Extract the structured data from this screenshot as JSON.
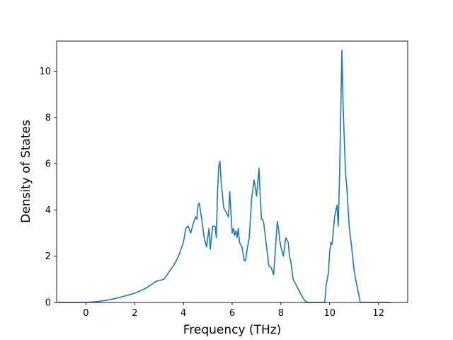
{
  "chart_data": {
    "type": "line",
    "title": "",
    "xlabel": "Frequency (THz)",
    "ylabel": "Density of States",
    "xlim": [
      -1.2,
      13.2
    ],
    "ylim": [
      0,
      11.3
    ],
    "xticks": [
      0,
      2,
      4,
      6,
      8,
      10,
      12
    ],
    "yticks": [
      0,
      2,
      4,
      6,
      8,
      10
    ],
    "grid": false,
    "legend": "none",
    "colors": {
      "line": "#1f77b4",
      "axes": "#000000",
      "background": "#ffffff"
    },
    "series": [
      {
        "x": [
          -1.15,
          -0.5,
          0.0,
          0.5,
          1.0,
          1.5,
          2.0,
          2.4,
          2.7,
          2.85,
          3.0,
          3.2,
          3.4,
          3.6,
          3.8,
          3.9,
          4.0,
          4.1,
          4.2,
          4.3,
          4.4,
          4.5,
          4.55,
          4.6,
          4.65,
          4.75,
          4.85,
          4.95,
          5.05,
          5.1,
          5.2,
          5.3,
          5.35,
          5.4,
          5.45,
          5.5,
          5.55,
          5.65,
          5.75,
          5.85,
          5.9,
          5.95,
          6.0,
          6.05,
          6.1,
          6.15,
          6.2,
          6.25,
          6.3,
          6.4,
          6.5,
          6.55,
          6.6,
          6.7,
          6.8,
          6.9,
          7.0,
          7.1,
          7.15,
          7.2,
          7.25,
          7.3,
          7.4,
          7.5,
          7.6,
          7.7,
          7.85,
          7.9,
          7.95,
          8.0,
          8.1,
          8.2,
          8.3,
          8.35,
          8.4,
          8.5,
          8.55,
          8.6,
          8.7,
          8.8,
          8.9,
          9.0,
          9.1,
          9.2,
          9.3,
          9.5,
          9.8,
          9.85,
          9.95,
          10.0,
          10.05,
          10.1,
          10.2,
          10.3,
          10.35,
          10.4,
          10.45,
          10.5,
          10.55,
          10.6,
          10.65,
          10.7,
          10.8,
          10.9,
          11.0,
          11.1,
          11.2,
          11.25,
          11.3,
          11.4,
          12.0,
          12.5
        ],
        "y": [
          0.0,
          0.0,
          0.0,
          0.04,
          0.12,
          0.25,
          0.4,
          0.58,
          0.78,
          0.9,
          0.95,
          1.0,
          1.3,
          1.6,
          2.0,
          2.3,
          2.6,
          3.2,
          3.3,
          3.0,
          3.4,
          3.7,
          3.6,
          4.2,
          4.3,
          3.6,
          2.8,
          2.4,
          3.2,
          2.3,
          3.3,
          3.3,
          2.8,
          4.8,
          5.9,
          6.1,
          5.2,
          4.1,
          3.9,
          3.7,
          4.8,
          3.9,
          3.0,
          3.2,
          2.9,
          3.1,
          2.8,
          3.2,
          2.6,
          2.4,
          1.8,
          1.8,
          2.2,
          2.8,
          4.5,
          5.3,
          4.6,
          5.8,
          4.6,
          3.6,
          3.6,
          3.4,
          2.5,
          1.6,
          1.5,
          1.2,
          3.5,
          3.2,
          2.7,
          2.4,
          2.0,
          2.8,
          2.6,
          2.0,
          1.8,
          1.0,
          0.9,
          0.8,
          0.6,
          0.4,
          0.2,
          0.05,
          0.0,
          0.0,
          0.0,
          0.0,
          0.0,
          0.7,
          1.3,
          2.2,
          2.6,
          2.5,
          3.7,
          4.2,
          3.3,
          5.3,
          8.0,
          10.9,
          8.5,
          7.0,
          5.6,
          5.0,
          3.3,
          2.4,
          1.4,
          0.8,
          0.3,
          0.0,
          0.0,
          0.0,
          0.0,
          0.0
        ]
      }
    ]
  }
}
